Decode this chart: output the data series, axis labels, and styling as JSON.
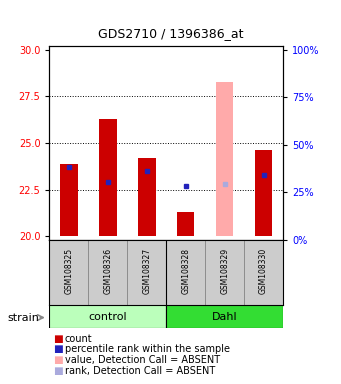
{
  "title": "GDS2710 / 1396386_at",
  "samples": [
    "GSM108325",
    "GSM108326",
    "GSM108327",
    "GSM108328",
    "GSM108329",
    "GSM108330"
  ],
  "red_values": [
    23.9,
    26.3,
    24.2,
    21.3,
    20.0,
    24.6
  ],
  "blue_values": [
    23.7,
    22.9,
    23.5,
    22.7,
    22.8,
    23.3
  ],
  "absent_flags": [
    false,
    false,
    false,
    false,
    true,
    false
  ],
  "absent_red_value": 28.3,
  "absent_blue_value": 22.8,
  "absent_index": 4,
  "ylim_left": [
    19.8,
    30.2
  ],
  "ylim_right": [
    0,
    102
  ],
  "yticks_left": [
    20,
    22.5,
    25,
    27.5,
    30
  ],
  "yticks_right": [
    0,
    25,
    50,
    75,
    100
  ],
  "bar_base": 20,
  "bar_width": 0.45,
  "red_color": "#cc0000",
  "blue_color": "#2222bb",
  "absent_red_color": "#ffaaaa",
  "absent_blue_color": "#aaaadd",
  "control_color": "#bbffbb",
  "dahl_color": "#33dd33",
  "gray_bg": "#cccccc",
  "grid_color": "#000000",
  "title_fontsize": 9,
  "tick_fontsize": 7,
  "label_fontsize": 7,
  "legend_fontsize": 7,
  "legend_items": [
    {
      "color": "#cc0000",
      "label": "count"
    },
    {
      "color": "#2222bb",
      "label": "percentile rank within the sample"
    },
    {
      "color": "#ffaaaa",
      "label": "value, Detection Call = ABSENT"
    },
    {
      "color": "#aaaadd",
      "label": "rank, Detection Call = ABSENT"
    }
  ]
}
